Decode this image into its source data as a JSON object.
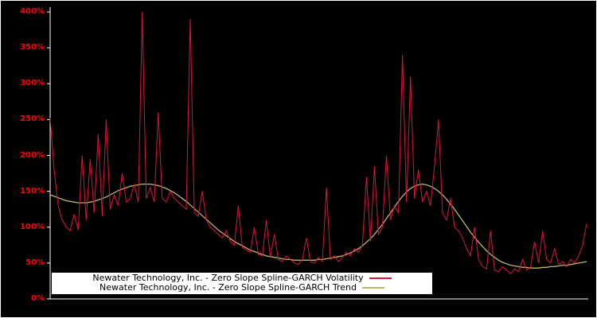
{
  "figure": {
    "background": "#000000",
    "frame_color": "#ffffff",
    "axis_color": "#ffffff",
    "tick_label_color": "#ff0000"
  },
  "legend": {
    "position": "bottom-center",
    "background": "#ffffff",
    "items": [
      {
        "label": "Newater Technology, Inc. - Zero Slope Spline-GARCH Volatility",
        "color": "#dc143c"
      },
      {
        "label": "Newater Technology, Inc. - Zero Slope Spline-GARCH Trend",
        "color": "#bdb76b"
      }
    ]
  },
  "chart_data": {
    "type": "line",
    "title": "",
    "xlabel": "",
    "ylabel": "",
    "x_axis": "unlabeled time index (trading days)",
    "ylim": [
      0,
      400
    ],
    "grid": false,
    "y_ticks": [
      {
        "value": 0,
        "label": "0%"
      },
      {
        "value": 50,
        "label": "50%"
      },
      {
        "value": 100,
        "label": "100%"
      },
      {
        "value": 150,
        "label": "150%"
      },
      {
        "value": 200,
        "label": "200%"
      },
      {
        "value": 250,
        "label": "250%"
      },
      {
        "value": 300,
        "label": "300%"
      },
      {
        "value": 350,
        "label": "350%"
      },
      {
        "value": 400,
        "label": "400%"
      }
    ],
    "series": [
      {
        "name": "Newater Technology, Inc. - Zero Slope Spline-GARCH Volatility",
        "color": "#dc143c",
        "values": [
          252,
          180,
          130,
          110,
          100,
          95,
          118,
          96,
          200,
          110,
          195,
          120,
          230,
          115,
          250,
          125,
          145,
          130,
          175,
          135,
          140,
          160,
          135,
          400,
          140,
          155,
          135,
          260,
          140,
          135,
          150,
          140,
          135,
          130,
          125,
          390,
          120,
          115,
          150,
          110,
          100,
          95,
          90,
          85,
          95,
          80,
          75,
          130,
          72,
          68,
          65,
          100,
          62,
          60,
          110,
          58,
          90,
          55,
          52,
          60,
          55,
          50,
          48,
          55,
          85,
          52,
          50,
          58,
          52,
          155,
          55,
          60,
          52,
          58,
          65,
          60,
          70,
          65,
          75,
          170,
          80,
          185,
          90,
          100,
          200,
          110,
          130,
          120,
          340,
          135,
          310,
          140,
          180,
          135,
          150,
          130,
          185,
          250,
          120,
          110,
          140,
          100,
          95,
          85,
          70,
          60,
          100,
          55,
          45,
          42,
          95,
          40,
          38,
          45,
          40,
          35,
          42,
          38,
          55,
          40,
          45,
          80,
          50,
          95,
          55,
          50,
          70,
          48,
          52,
          45,
          55,
          50,
          60,
          75,
          105
        ]
      },
      {
        "name": "Newater Technology, Inc. - Zero Slope Spline-GARCH Trend",
        "color": "#bdb76b",
        "values": [
          145,
          143,
          141,
          139,
          137,
          136,
          135,
          134,
          134,
          134,
          135,
          136,
          138,
          140,
          142,
          145,
          148,
          151,
          153,
          155,
          157,
          158,
          159,
          160,
          160,
          160,
          159,
          158,
          156,
          154,
          151,
          148,
          144,
          140,
          136,
          131,
          126,
          121,
          116,
          111,
          106,
          101,
          96,
          92,
          88,
          84,
          80,
          77,
          74,
          71,
          68,
          66,
          64,
          62,
          60,
          59,
          58,
          57,
          56,
          55,
          55,
          54,
          54,
          54,
          54,
          54,
          54,
          55,
          55,
          56,
          57,
          58,
          59,
          60,
          62,
          64,
          67,
          70,
          74,
          79,
          84,
          90,
          97,
          104,
          112,
          120,
          128,
          136,
          143,
          149,
          154,
          157,
          159,
          160,
          159,
          157,
          154,
          150,
          145,
          139,
          132,
          125,
          117,
          109,
          101,
          93,
          86,
          79,
          73,
          67,
          62,
          58,
          54,
          51,
          49,
          47,
          46,
          45,
          44,
          44,
          43,
          43,
          43,
          44,
          44,
          45,
          45,
          46,
          47,
          47,
          48,
          49,
          50,
          51,
          52
        ]
      }
    ],
    "legend_position": "bottom-center"
  }
}
